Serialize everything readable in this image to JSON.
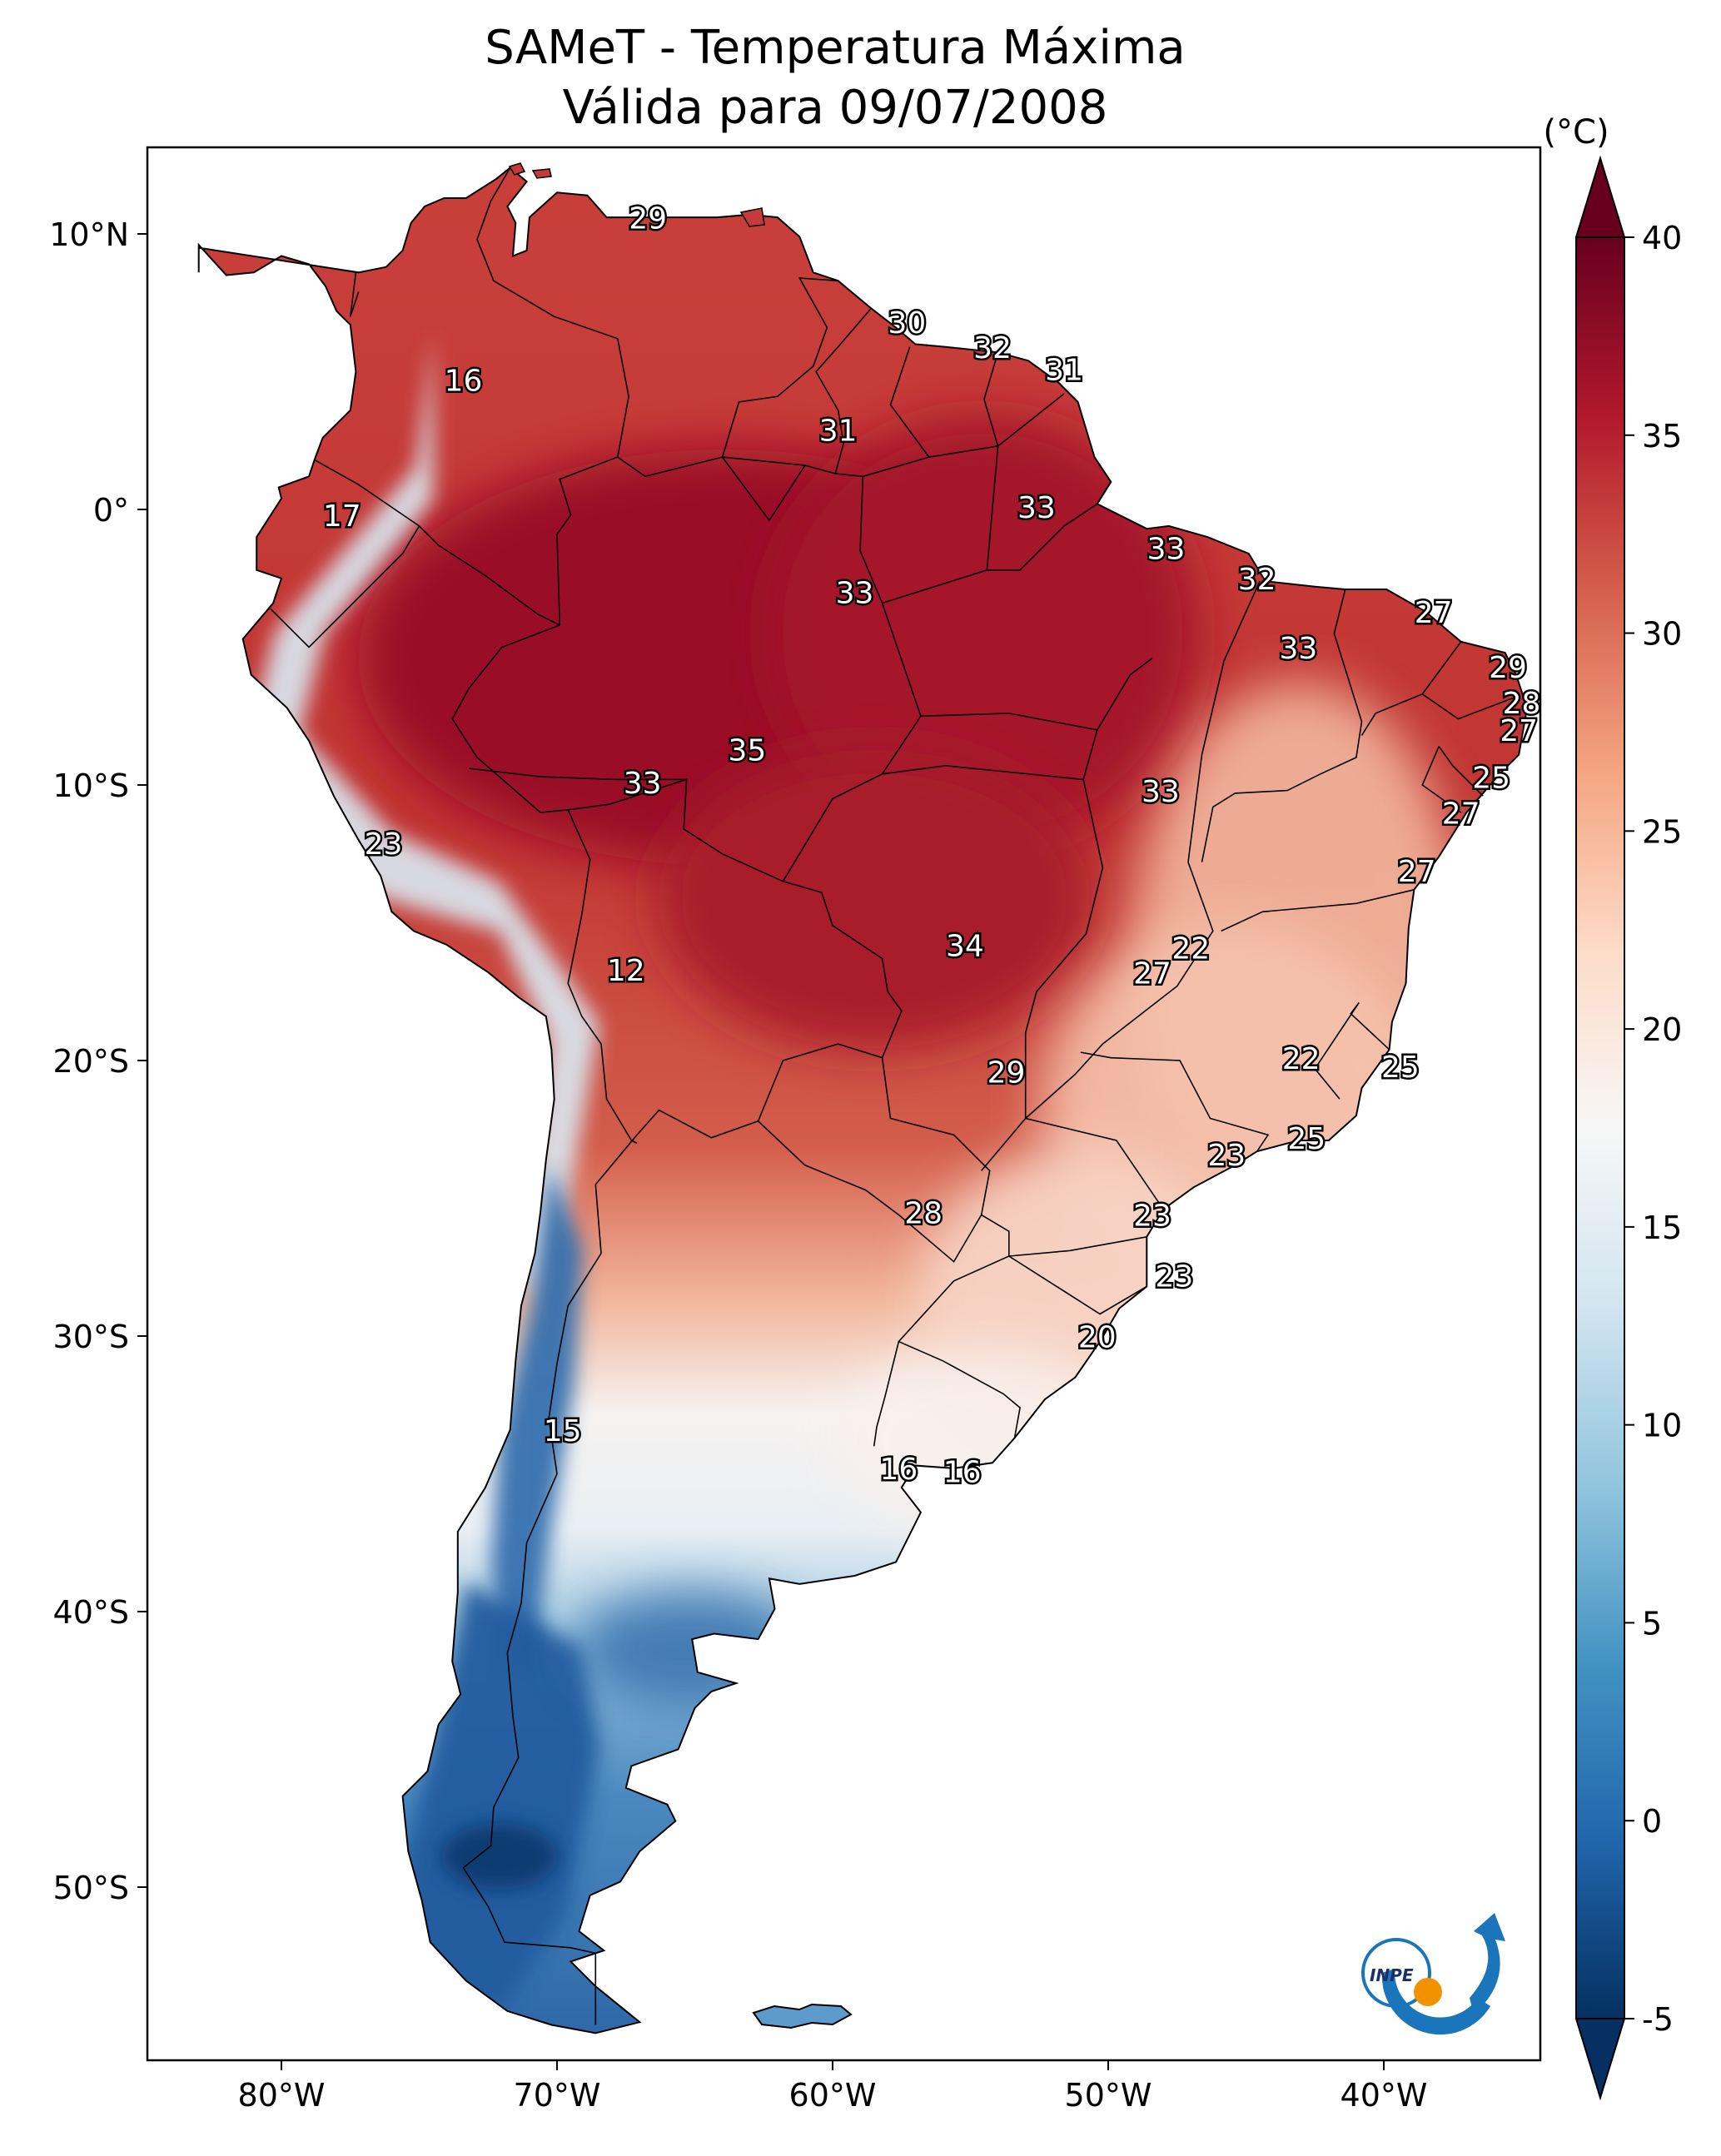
{
  "title": {
    "line1": "SAMeT - Temperatura Máxima",
    "line2": "Válida para 09/07/2008"
  },
  "map": {
    "lat_ticks": [
      "10°N",
      "0°",
      "10°S",
      "20°S",
      "30°S",
      "40°S",
      "50°S"
    ],
    "lon_ticks": [
      "80°W",
      "70°W",
      "60°W",
      "50°W",
      "40°W"
    ],
    "contour_labels": [
      {
        "value": "29",
        "lon": -66.7,
        "lat": 10.5
      },
      {
        "value": "16",
        "lon": -73.4,
        "lat": 4.6
      },
      {
        "value": "30",
        "lon": -57.3,
        "lat": 6.7
      },
      {
        "value": "32",
        "lon": -54.2,
        "lat": 5.8
      },
      {
        "value": "31",
        "lon": -51.6,
        "lat": 5.0
      },
      {
        "value": "31",
        "lon": -59.8,
        "lat": 2.8
      },
      {
        "value": "17",
        "lon": -77.8,
        "lat": -0.3
      },
      {
        "value": "33",
        "lon": -52.6,
        "lat": 0.0
      },
      {
        "value": "33",
        "lon": -47.9,
        "lat": -1.5
      },
      {
        "value": "32",
        "lon": -44.6,
        "lat": -2.6
      },
      {
        "value": "33",
        "lon": -59.2,
        "lat": -3.1
      },
      {
        "value": "27",
        "lon": -38.2,
        "lat": -3.8
      },
      {
        "value": "33",
        "lon": -43.1,
        "lat": -5.1
      },
      {
        "value": "29",
        "lon": -35.5,
        "lat": -5.8
      },
      {
        "value": "28",
        "lon": -35.0,
        "lat": -7.1
      },
      {
        "value": "27",
        "lon": -35.1,
        "lat": -8.1
      },
      {
        "value": "35",
        "lon": -63.1,
        "lat": -8.8
      },
      {
        "value": "33",
        "lon": -66.9,
        "lat": -10.0
      },
      {
        "value": "33",
        "lon": -48.1,
        "lat": -10.3
      },
      {
        "value": "25",
        "lon": -36.1,
        "lat": -9.8
      },
      {
        "value": "27",
        "lon": -37.2,
        "lat": -11.1
      },
      {
        "value": "23",
        "lon": -76.3,
        "lat": -12.2
      },
      {
        "value": "27",
        "lon": -38.8,
        "lat": -13.2
      },
      {
        "value": "12",
        "lon": -67.5,
        "lat": -16.8
      },
      {
        "value": "34",
        "lon": -55.2,
        "lat": -15.9
      },
      {
        "value": "22",
        "lon": -47.0,
        "lat": -16.0
      },
      {
        "value": "27",
        "lon": -48.4,
        "lat": -16.9
      },
      {
        "value": "22",
        "lon": -43.0,
        "lat": -20.0
      },
      {
        "value": "25",
        "lon": -39.4,
        "lat": -20.3
      },
      {
        "value": "29",
        "lon": -53.7,
        "lat": -20.5
      },
      {
        "value": "25",
        "lon": -42.8,
        "lat": -22.9
      },
      {
        "value": "23",
        "lon": -45.7,
        "lat": -23.5
      },
      {
        "value": "28",
        "lon": -56.7,
        "lat": -25.6
      },
      {
        "value": "23",
        "lon": -48.4,
        "lat": -25.7
      },
      {
        "value": "23",
        "lon": -47.6,
        "lat": -27.9
      },
      {
        "value": "20",
        "lon": -50.4,
        "lat": -30.1
      },
      {
        "value": "15",
        "lon": -69.8,
        "lat": -33.5
      },
      {
        "value": "16",
        "lon": -57.6,
        "lat": -34.9
      },
      {
        "value": "16",
        "lon": -55.3,
        "lat": -35.0
      }
    ]
  },
  "colorbar": {
    "unit": "(°C)",
    "tick_labels": [
      "40",
      "35",
      "30",
      "25",
      "20",
      "15",
      "10",
      "5",
      "0",
      "-5"
    ],
    "tick_values": [
      40,
      35,
      30,
      25,
      20,
      15,
      10,
      5,
      0,
      -5
    ],
    "range": [
      -5,
      40
    ],
    "colors": [
      "#053061",
      "#2166ac",
      "#4393c3",
      "#92c5de",
      "#d1e5f0",
      "#f7f7f7",
      "#fddbc7",
      "#f4a582",
      "#d6604d",
      "#b2182b",
      "#67001f"
    ]
  },
  "logo": {
    "text": "INPE",
    "blue": "#1a75bb",
    "orange": "#f39200"
  }
}
